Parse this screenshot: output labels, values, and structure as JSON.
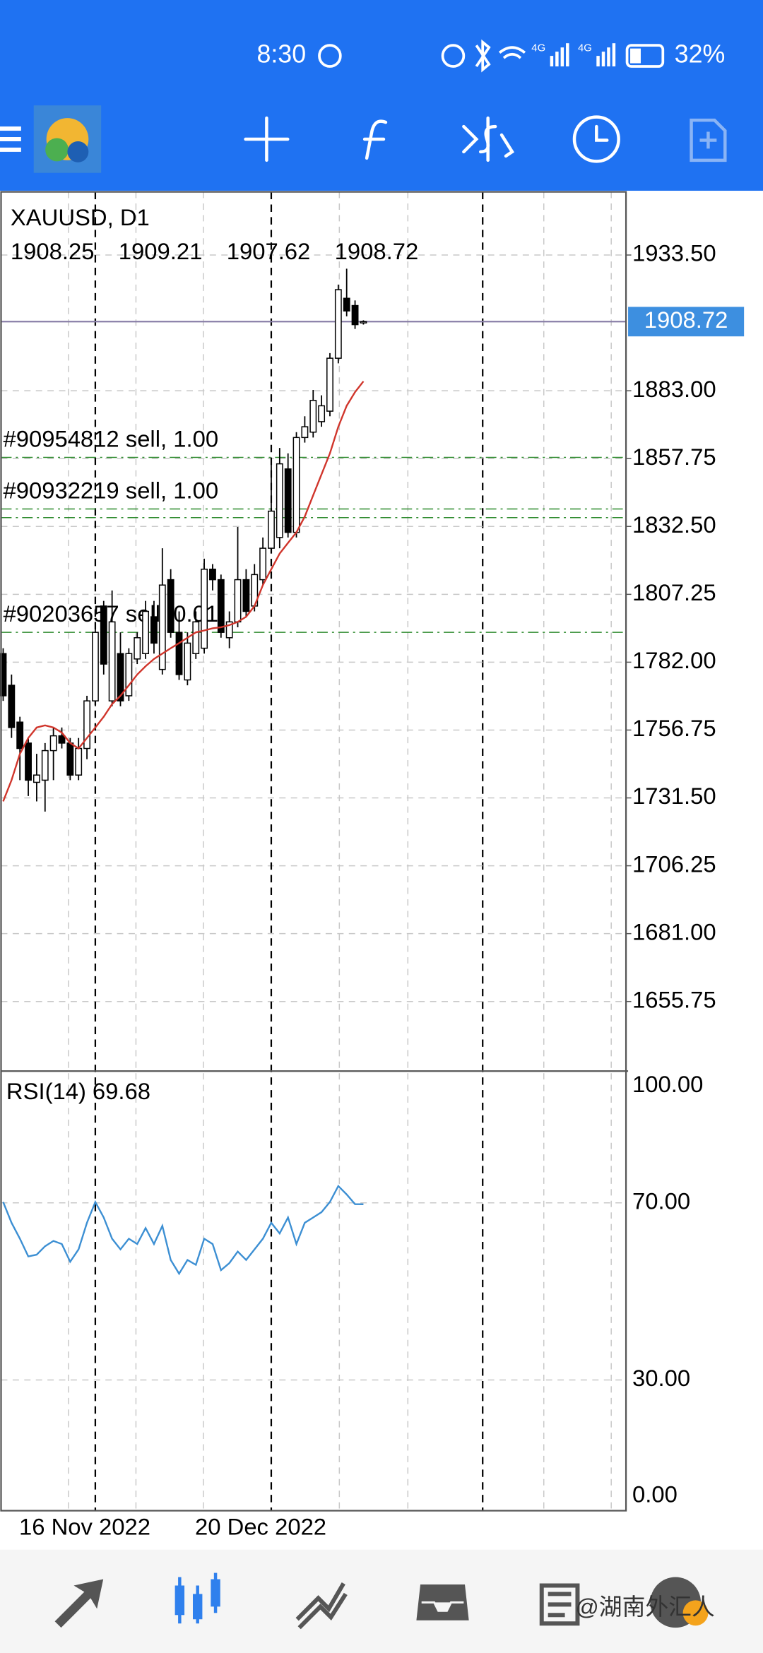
{
  "status_bar": {
    "time": "8:30",
    "network": [
      "4G",
      "4G"
    ],
    "battery": "32%"
  },
  "chart_data": {
    "type": "candlestick",
    "title": "XAUUSD, D1",
    "categories": [
      null,
      null,
      null,
      null,
      null,
      null,
      null,
      null,
      null,
      null,
      null,
      "16 Nov 2022",
      null,
      null,
      null,
      null,
      null,
      null,
      null,
      null,
      null,
      null,
      null,
      null,
      null,
      null,
      null,
      null,
      null,
      null,
      null,
      null,
      "20 Dec 2022",
      null,
      null,
      null,
      null,
      null,
      null,
      null,
      null,
      null,
      null,
      null
    ],
    "open": [
      1785.2,
      1773.4,
      1759.7,
      1751.9,
      1737.3,
      1738.1,
      1749.1,
      1754.6,
      1751.9,
      1740.0,
      1749.9,
      1767.6,
      1802.9,
      1767.6,
      1785.2,
      1769.5,
      1783.2,
      1785.2,
      1798.9,
      1779.3,
      1812.7,
      1793.1,
      1775.4,
      1785.2,
      1787.2,
      1816.6,
      1812.7,
      1791.1,
      1797.0,
      1812.7,
      1802.9,
      1812.7,
      1824.4,
      1828.4,
      1853.9,
      1830.3,
      1865.6,
      1867.6,
      1871.5,
      1875.4,
      1895.1,
      1917.4,
      1914.7,
      1908.25
    ],
    "high": [
      1787.2,
      1777.4,
      1761.7,
      1753.8,
      1747.9,
      1751.9,
      1757.7,
      1757.7,
      1753.8,
      1753.8,
      1769.5,
      1797.0,
      1804.8,
      1808.7,
      1793.1,
      1787.2,
      1793.1,
      1804.8,
      1804.8,
      1824.4,
      1816.6,
      1800.9,
      1793.1,
      1800.9,
      1820.5,
      1818.5,
      1814.6,
      1800.9,
      1832.3,
      1816.6,
      1818.5,
      1828.4,
      1855.8,
      1861.7,
      1859.7,
      1867.6,
      1873.5,
      1883.3,
      1881.3,
      1897.0,
      1922.5,
      1928.4,
      1916.6,
      1909.21
    ],
    "low": [
      1767.6,
      1753.8,
      1738.1,
      1732.2,
      1730.2,
      1726.4,
      1738.1,
      1749.9,
      1738.1,
      1738.1,
      1745.9,
      1765.6,
      1777.4,
      1765.6,
      1765.6,
      1767.6,
      1781.3,
      1783.2,
      1785.2,
      1777.4,
      1791.1,
      1775.4,
      1773.4,
      1783.2,
      1785.2,
      1808.7,
      1791.1,
      1787.2,
      1795.0,
      1798.9,
      1800.9,
      1810.7,
      1822.4,
      1824.4,
      1828.4,
      1828.4,
      1863.7,
      1865.6,
      1869.6,
      1873.5,
      1893.2,
      1910.7,
      1906.0,
      1907.62
    ],
    "close": [
      1769.5,
      1757.7,
      1749.9,
      1738.1,
      1740.0,
      1749.1,
      1754.6,
      1751.9,
      1740.0,
      1749.9,
      1767.6,
      1793.1,
      1781.3,
      1797.0,
      1767.6,
      1785.2,
      1791.1,
      1800.9,
      1789.1,
      1810.7,
      1793.1,
      1777.4,
      1789.1,
      1797.0,
      1816.6,
      1812.7,
      1793.1,
      1797.0,
      1812.7,
      1800.9,
      1814.6,
      1824.4,
      1838.2,
      1855.8,
      1830.3,
      1865.6,
      1869.6,
      1879.4,
      1877.4,
      1895.1,
      1920.6,
      1912.7,
      1907.6,
      1908.72
    ],
    "bull_color": "#ffffff",
    "bear_color": "#000000",
    "ma": {
      "color": "#d0352b",
      "values": [
        1730.2,
        1738.1,
        1747.9,
        1753.8,
        1757.7,
        1758.5,
        1757.7,
        1755.8,
        1751.9,
        1749.9,
        1753.8,
        1757.7,
        1761.7,
        1766.4,
        1769.5,
        1773.4,
        1777.4,
        1780.5,
        1783.2,
        1785.2,
        1787.2,
        1789.1,
        1791.1,
        1793.1,
        1793.8,
        1794.6,
        1795.0,
        1795.8,
        1797.0,
        1798.9,
        1802.9,
        1810.7,
        1816.6,
        1822.4,
        1826.4,
        1830.3,
        1836.2,
        1844.1,
        1851.9,
        1859.7,
        1869.6,
        1877.4,
        1882.5,
        1886.5
      ]
    },
    "ylim": [
      1630.25,
      1957.0
    ],
    "yticks": [
      {
        "value": 1933.5,
        "label": "1933.50"
      },
      {
        "value": 1883,
        "label": "1883.00"
      },
      {
        "value": 1857.75,
        "label": "1857.75"
      },
      {
        "value": 1832.5,
        "label": "1832.50"
      },
      {
        "value": 1807.25,
        "label": "1807.25"
      },
      {
        "value": 1782,
        "label": "1782.00"
      },
      {
        "value": 1756.75,
        "label": "1756.75"
      },
      {
        "value": 1731.5,
        "label": "1731.50"
      },
      {
        "value": 1706.25,
        "label": "1706.25"
      },
      {
        "value": 1681,
        "label": "1681.00"
      },
      {
        "value": 1655.75,
        "label": "1655.75"
      }
    ],
    "grid": true,
    "bid_color": "#3d8fe0",
    "orders": [
      {
        "label": "#90954812 sell, 1.00",
        "price": 1858.2
      },
      {
        "label": "#90932219 sell, 1.00",
        "price": 1839.0
      },
      {
        "label": "#90203657 sell, 0.01",
        "price": 1793.1
      }
    ],
    "levels": [
      1835.8
    ],
    "order_color": "#2e8b2e",
    "rsi": {
      "name": "RSI(14)",
      "color": "#3c8fd3",
      "values": [
        70.2,
        65.5,
        61.9,
        57.9,
        58.3,
        60.2,
        61.4,
        60.7,
        56.7,
        59.5,
        65.5,
        70.2,
        66.7,
        61.9,
        59.5,
        61.9,
        60.7,
        64.3,
        60.7,
        64.8,
        57.1,
        54.0,
        57.1,
        56.0,
        61.9,
        60.7,
        54.8,
        56.4,
        59.0,
        57.1,
        59.5,
        61.9,
        65.5,
        63.1,
        66.7,
        60.7,
        65.5,
        66.7,
        67.9,
        70.2,
        73.8,
        71.9,
        69.7,
        69.68
      ]
    },
    "y2lim": [
      0,
      100
    ],
    "y2ticks": [
      {
        "value": 100,
        "label": "100.00"
      },
      {
        "value": 70,
        "label": "70.00"
      },
      {
        "value": 30,
        "label": "30.00"
      },
      {
        "value": 0,
        "label": "0.00"
      }
    ]
  },
  "watermark": "@湖南外汇人"
}
